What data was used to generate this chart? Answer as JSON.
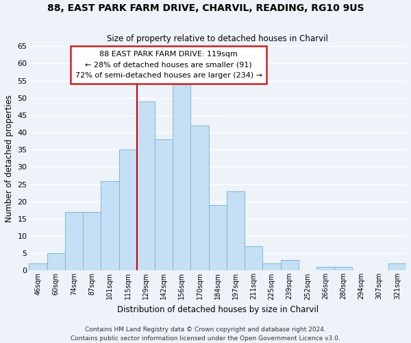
{
  "title": "88, EAST PARK FARM DRIVE, CHARVIL, READING, RG10 9US",
  "subtitle": "Size of property relative to detached houses in Charvil",
  "xlabel": "Distribution of detached houses by size in Charvil",
  "ylabel": "Number of detached properties",
  "bin_labels": [
    "46sqm",
    "60sqm",
    "74sqm",
    "87sqm",
    "101sqm",
    "115sqm",
    "129sqm",
    "142sqm",
    "156sqm",
    "170sqm",
    "184sqm",
    "197sqm",
    "211sqm",
    "225sqm",
    "239sqm",
    "252sqm",
    "266sqm",
    "280sqm",
    "294sqm",
    "307sqm",
    "321sqm"
  ],
  "bar_values": [
    2,
    5,
    17,
    17,
    26,
    35,
    49,
    38,
    54,
    42,
    19,
    23,
    7,
    2,
    3,
    0,
    1,
    1,
    0,
    0,
    2
  ],
  "bar_color": "#c5dff5",
  "bar_edgecolor": "#7ab8d9",
  "vline_x_index": 5,
  "vline_color": "#cc0000",
  "ylim": [
    0,
    65
  ],
  "yticks": [
    0,
    5,
    10,
    15,
    20,
    25,
    30,
    35,
    40,
    45,
    50,
    55,
    60,
    65
  ],
  "annotation_line1": "88 EAST PARK FARM DRIVE: 119sqm",
  "annotation_line2": "← 28% of detached houses are smaller (91)",
  "annotation_line3": "72% of semi-detached houses are larger (234) →",
  "footer_line1": "Contains HM Land Registry data © Crown copyright and database right 2024.",
  "footer_line2": "Contains public sector information licensed under the Open Government Licence v3.0.",
  "background_color": "#eef2f9",
  "grid_color": "#ffffff"
}
